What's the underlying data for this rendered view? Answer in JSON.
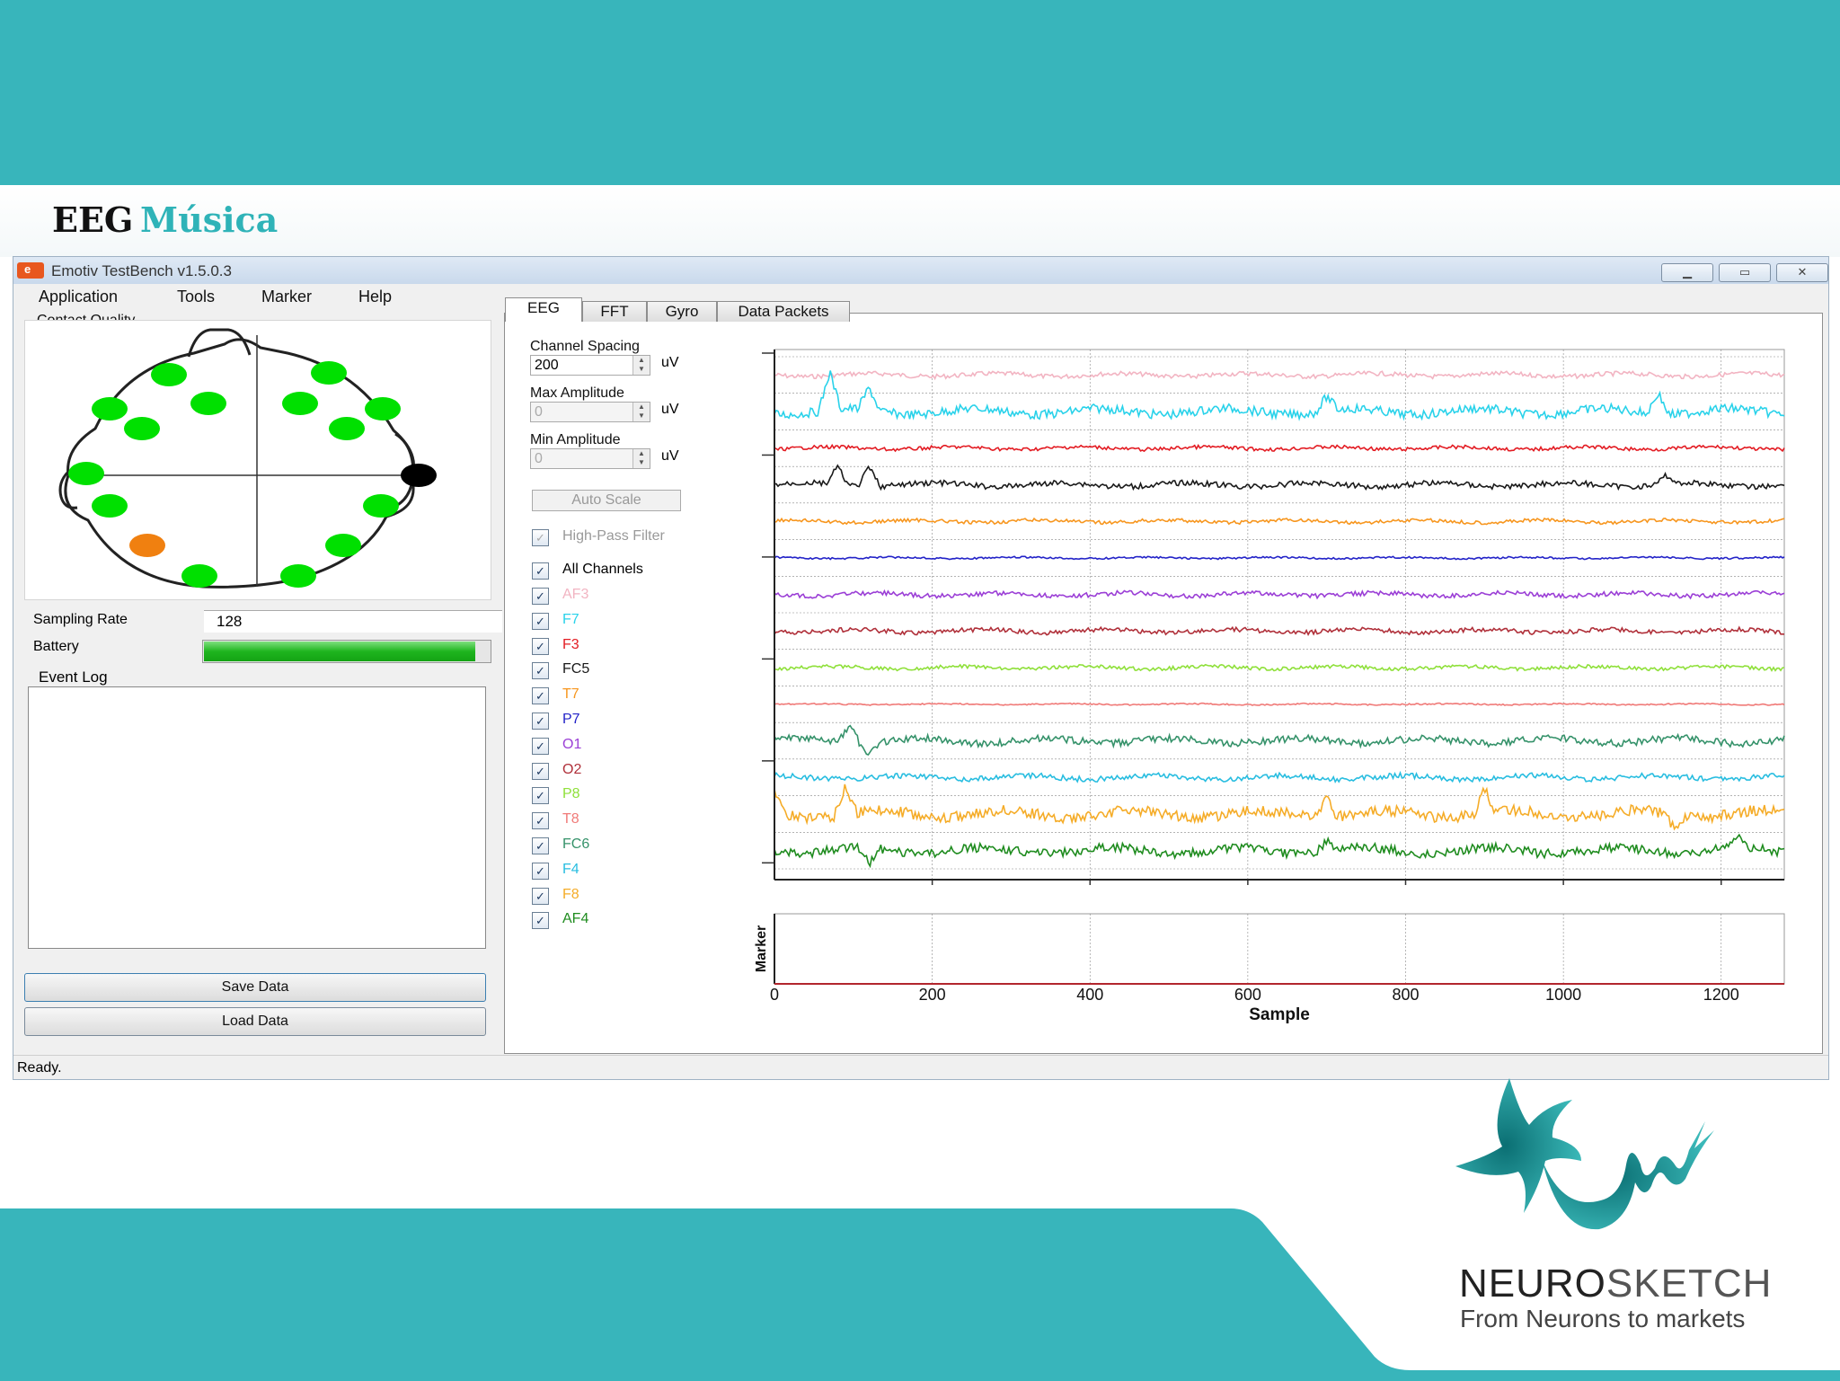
{
  "slide": {
    "title_part1": "EEG",
    "title_part2": "Música",
    "band_color": "#38b5bb"
  },
  "window": {
    "title": "Emotiv TestBench v1.5.0.3",
    "icon": "emotiv-logo-icon",
    "buttons": [
      "minimize-icon",
      "maximize-icon",
      "close-icon"
    ]
  },
  "menu": [
    "Application",
    "Tools",
    "Marker",
    "Help"
  ],
  "left_panel": {
    "contact_quality_label": "Contact Quality",
    "sampling_rate_label": "Sampling Rate",
    "sampling_rate_value": "128",
    "battery_label": "Battery",
    "battery_level": 0.95,
    "event_log_label": "Event Log",
    "save_button": "Save Data",
    "load_button": "Load Data",
    "sensor_status_colors": {
      "good": "#00e000",
      "fair": "#f08010",
      "none": "#000000"
    }
  },
  "tabs": [
    "EEG",
    "FFT",
    "Gyro",
    "Data Packets"
  ],
  "controls": {
    "channel_spacing_label": "Channel Spacing",
    "channel_spacing_value": "200",
    "max_amplitude_label": "Max Amplitude",
    "max_amplitude_value": "0",
    "min_amplitude_label": "Min Amplitude",
    "min_amplitude_value": "0",
    "unit": "uV",
    "auto_scale_button": "Auto Scale",
    "high_pass_label": "High-Pass Filter",
    "all_channels_label": "All Channels"
  },
  "channels": [
    {
      "name": "AF3",
      "color": "#f2b4c2"
    },
    {
      "name": "F7",
      "color": "#29d2ea"
    },
    {
      "name": "F3",
      "color": "#e31c23"
    },
    {
      "name": "FC5",
      "color": "#1a1a1a"
    },
    {
      "name": "T7",
      "color": "#f7961e"
    },
    {
      "name": "P7",
      "color": "#2323c8"
    },
    {
      "name": "O1",
      "color": "#9b3fd6"
    },
    {
      "name": "O2",
      "color": "#b0303a"
    },
    {
      "name": "P8",
      "color": "#8fe03a"
    },
    {
      "name": "T8",
      "color": "#f07a78"
    },
    {
      "name": "FC6",
      "color": "#35926a"
    },
    {
      "name": "F4",
      "color": "#28bde0"
    },
    {
      "name": "F8",
      "color": "#f5ac28"
    },
    {
      "name": "AF4",
      "color": "#1f8c1f"
    }
  ],
  "chart_data": {
    "type": "line",
    "xlabel": "Sample",
    "marker_ylabel": "Marker",
    "xlim": [
      0,
      1280
    ],
    "xticks": [
      0,
      200,
      400,
      600,
      800,
      1000,
      1200
    ],
    "grid": true
  },
  "status": "Ready.",
  "logo": {
    "name_bold": "NEURO",
    "name_light": "SKETCH",
    "tagline": "From Neurons to markets"
  }
}
